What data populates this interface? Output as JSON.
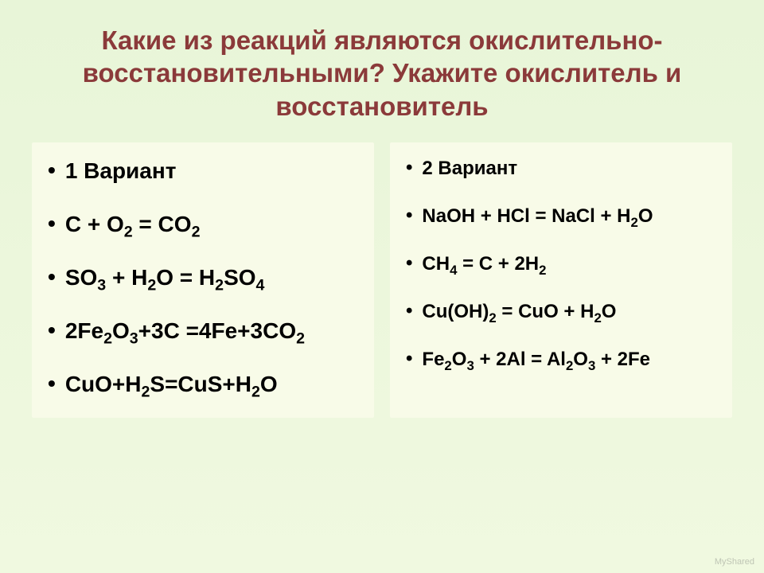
{
  "title": "Какие из реакций являются окислительно-восстановительными? Укажите окислитель и восстановитель",
  "left": {
    "heading": "1 Вариант",
    "items": [
      "C + O<sub>2</sub> = CO<sub>2</sub>",
      "SO<sub>3</sub> + H<sub>2</sub>O = H<sub>2</sub>SO<sub>4</sub>",
      "2Fe<sub>2</sub>O<sub>3</sub>+3C =4Fe+3CO<sub>2</sub>",
      "CuO+H<sub>2</sub>S=CuS+H<sub>2</sub>O"
    ]
  },
  "right": {
    "heading": "2 Вариант",
    "items": [
      "NaOH + HCl = NaCl + H<sub>2</sub>O",
      "CH<sub>4</sub> = C + 2H<sub>2</sub>",
      "Cu(OH)<sub>2</sub> = CuO + H<sub>2</sub>O",
      "Fe<sub>2</sub>O<sub>3</sub> + 2Al = Al<sub>2</sub>O<sub>3</sub> + 2Fe"
    ]
  },
  "watermark": "MyShared",
  "style": {
    "background_gradient": [
      "#e8f5d8",
      "#f0f9e0"
    ],
    "title_color": "#8b3a3a",
    "title_fontsize": 33,
    "column_bg": "#f8fbe8",
    "left_fontsize": 28,
    "right_fontsize": 24,
    "bullet_char": "•",
    "text_color": "#000000"
  }
}
